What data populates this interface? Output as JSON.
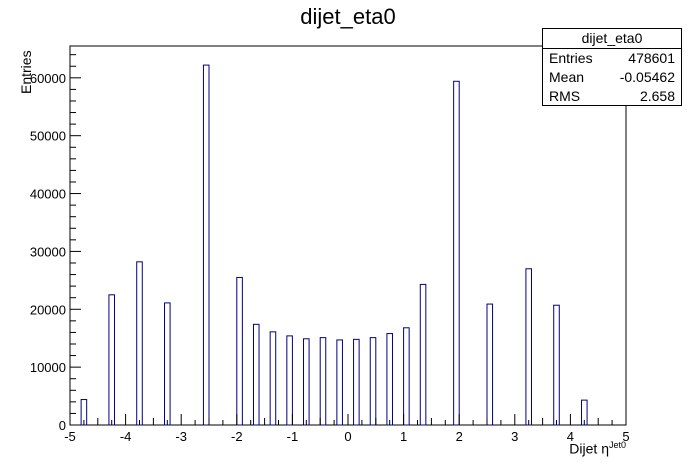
{
  "chart_data": {
    "type": "bar",
    "title": "dijet_eta0",
    "xlabel": "Dijet η",
    "xlabel_sup": "Jet0",
    "ylabel": "Entries",
    "xlim": [
      -5,
      5
    ],
    "ylim": [
      0,
      65500
    ],
    "xticks": [
      "-5",
      "-4",
      "-3",
      "-2",
      "-1",
      "0",
      "1",
      "2",
      "3",
      "4",
      "5"
    ],
    "yticks": [
      "0",
      "10000",
      "20000",
      "30000",
      "40000",
      "50000",
      "60000"
    ],
    "bar_color": "#000080",
    "bins": [
      {
        "x": -4.75,
        "y": 4400
      },
      {
        "x": -4.25,
        "y": 22500
      },
      {
        "x": -3.75,
        "y": 28200
      },
      {
        "x": -3.25,
        "y": 21100
      },
      {
        "x": -2.55,
        "y": 62200
      },
      {
        "x": -1.95,
        "y": 25500
      },
      {
        "x": -1.65,
        "y": 17400
      },
      {
        "x": -1.35,
        "y": 16100
      },
      {
        "x": -1.05,
        "y": 15400
      },
      {
        "x": -0.75,
        "y": 14900
      },
      {
        "x": -0.45,
        "y": 15100
      },
      {
        "x": -0.15,
        "y": 14700
      },
      {
        "x": 0.15,
        "y": 14800
      },
      {
        "x": 0.45,
        "y": 15100
      },
      {
        "x": 0.75,
        "y": 15800
      },
      {
        "x": 1.05,
        "y": 16800
      },
      {
        "x": 1.35,
        "y": 24300
      },
      {
        "x": 1.95,
        "y": 59400
      },
      {
        "x": 2.55,
        "y": 20900
      },
      {
        "x": 3.25,
        "y": 27000
      },
      {
        "x": 3.75,
        "y": 20700
      },
      {
        "x": 4.25,
        "y": 4300
      },
      {
        "x": 4.75,
        "y": 0
      }
    ],
    "stats": {
      "name": "dijet_eta0",
      "rows": [
        {
          "label": "Entries",
          "value": "478601"
        },
        {
          "label": "Mean",
          "value": "-0.05462"
        },
        {
          "label": "RMS",
          "value": "2.658"
        }
      ]
    }
  }
}
